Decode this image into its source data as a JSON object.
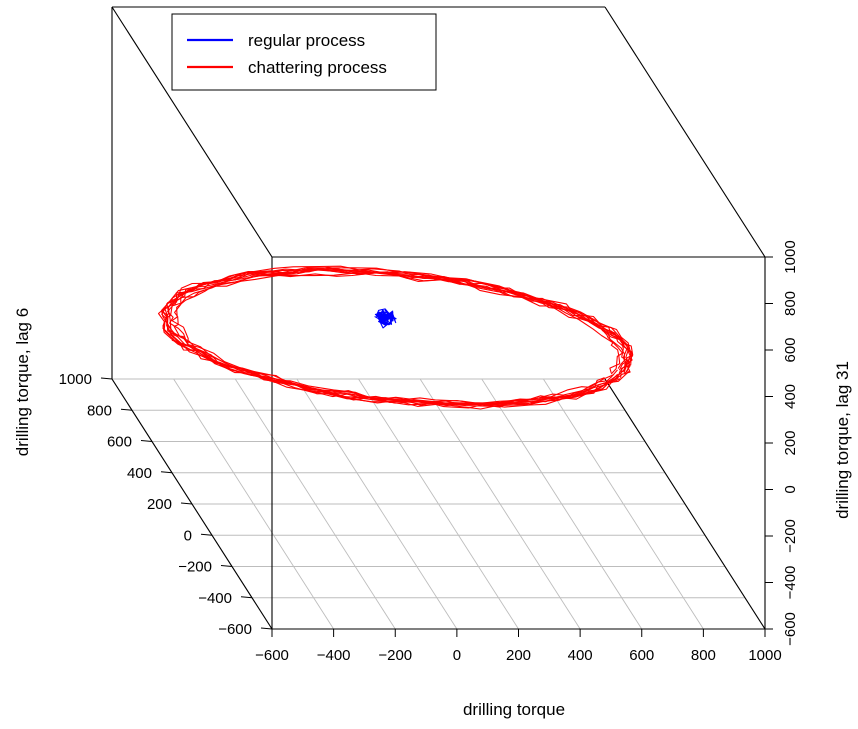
{
  "chart_data": {
    "type": "line",
    "subtype": "3d-scatterplot",
    "x_axis": {
      "label": "drilling torque",
      "range": [
        -600,
        1000
      ],
      "ticks": [
        -600,
        -400,
        -200,
        0,
        200,
        400,
        600,
        800,
        1000
      ]
    },
    "y_axis": {
      "label": "drilling torque, lag 6",
      "range": [
        -600,
        1000
      ],
      "ticks": [
        -600,
        -400,
        -200,
        0,
        200,
        400,
        600,
        800,
        1000
      ]
    },
    "z_axis": {
      "label": "drilling torque, lag 31",
      "range": [
        -600,
        1000
      ],
      "ticks": [
        -600,
        -400,
        -200,
        0,
        200,
        400,
        600,
        800,
        1000
      ]
    },
    "grid": true,
    "legend": {
      "placement": "top-left",
      "entries": [
        "regular process",
        "chattering process"
      ]
    },
    "series": [
      {
        "name": "regular process",
        "color": "#0000ff",
        "center": [
          -15,
          70,
          290
        ],
        "spread": 22,
        "points": 130
      },
      {
        "name": "chattering process",
        "color": "#ff0000",
        "center": [
          0,
          0,
          250
        ],
        "amplitude": 640,
        "orbits": 12
      }
    ]
  }
}
